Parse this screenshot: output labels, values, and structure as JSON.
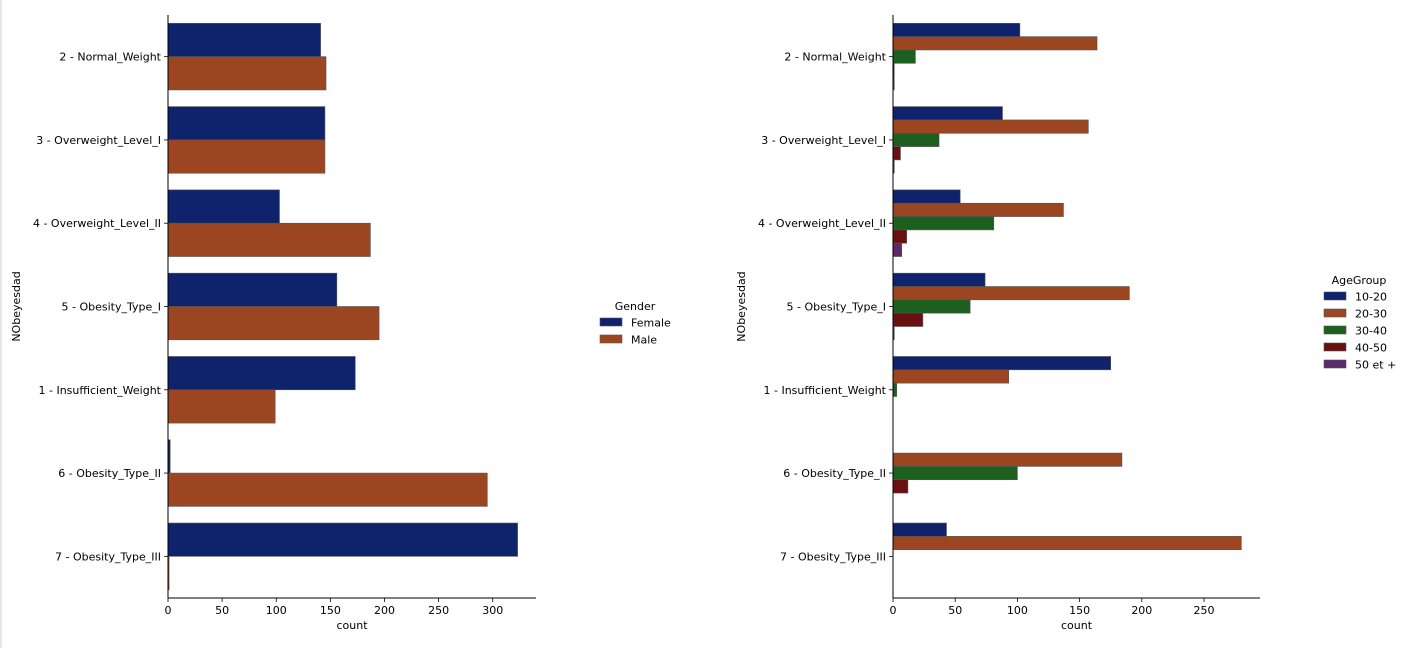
{
  "chart_data": [
    {
      "type": "bar",
      "orientation": "horizontal",
      "title": "",
      "xlabel": "count",
      "ylabel": "NObeyesdad",
      "xlim": [
        0,
        340
      ],
      "xticks": [
        0,
        50,
        100,
        150,
        200,
        250,
        300
      ],
      "categories": [
        "2 - Normal_Weight",
        "3 - Overweight_Level_I",
        "4 - Overweight_Level_II",
        "5 - Obesity_Type_I",
        "1 - Insufficient_Weight",
        "6 - Obesity_Type_II",
        "7 - Obesity_Type_III"
      ],
      "legend_title": "Gender",
      "legend_position": "right",
      "series": [
        {
          "name": "Female",
          "color": "#0e236b",
          "values": [
            141,
            145,
            103,
            156,
            173,
            2,
            323
          ]
        },
        {
          "name": "Male",
          "color": "#9c4521",
          "values": [
            146,
            145,
            187,
            195,
            99,
            295,
            1
          ]
        }
      ]
    },
    {
      "type": "bar",
      "orientation": "horizontal",
      "title": "",
      "xlabel": "count",
      "ylabel": "NObeyesdad",
      "xlim": [
        0,
        295
      ],
      "xticks": [
        0,
        50,
        100,
        150,
        200,
        250
      ],
      "categories": [
        "2 - Normal_Weight",
        "3 - Overweight_Level_I",
        "4 - Overweight_Level_II",
        "5 - Obesity_Type_I",
        "1 - Insufficient_Weight",
        "6 - Obesity_Type_II",
        "7 - Obesity_Type_III"
      ],
      "legend_title": "AgeGroup",
      "legend_position": "right",
      "series": [
        {
          "name": "10-20",
          "color": "#0e236b",
          "values": [
            102,
            88,
            54,
            74,
            175,
            0,
            43
          ]
        },
        {
          "name": "20-30",
          "color": "#9c4521",
          "values": [
            164,
            157,
            137,
            190,
            93,
            184,
            280
          ]
        },
        {
          "name": "30-40",
          "color": "#1d5f1f",
          "values": [
            18,
            37,
            81,
            62,
            3,
            100,
            0
          ]
        },
        {
          "name": "40-50",
          "color": "#6b1010",
          "values": [
            1,
            6,
            11,
            24,
            0,
            12,
            0
          ]
        },
        {
          "name": "50 et +",
          "color": "#5a2a6a",
          "values": [
            1,
            1,
            7,
            1,
            0,
            0,
            0
          ]
        }
      ]
    }
  ]
}
